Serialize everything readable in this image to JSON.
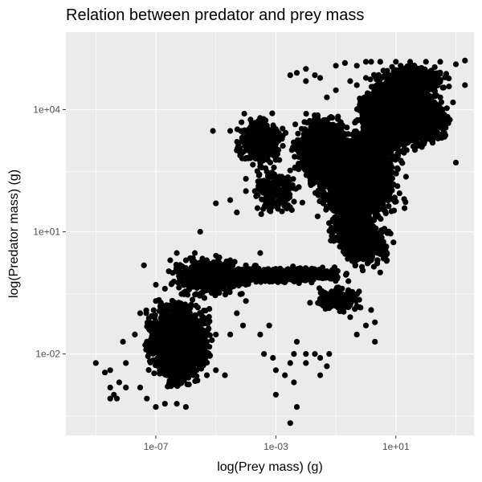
{
  "chart_data": {
    "type": "scatter",
    "title": "Relation between predator and prey mass",
    "xlabel": "log(Prey mass) (g)",
    "ylabel": "log(Predator mass) (g)",
    "x_scale": "log10",
    "y_scale": "log10",
    "xlim": [
      1e-10,
      4000.0
    ],
    "ylim": [
      0.0001,
      800000.0
    ],
    "x_ticks": [
      {
        "value": 1e-07,
        "label": "1e-07"
      },
      {
        "value": 0.001,
        "label": "1e-03"
      },
      {
        "value": 10,
        "label": "1e+01"
      }
    ],
    "y_ticks": [
      {
        "value": 0.01,
        "label": "1e-02"
      },
      {
        "value": 10,
        "label": "1e+01"
      },
      {
        "value": 10000,
        "label": "1e+04"
      }
    ],
    "x_minor_ticks": [
      1e-09,
      1e-05,
      0.1,
      1000
    ],
    "y_minor_ticks": [
      0.0003,
      0.3,
      300
    ],
    "grid": true,
    "point_color": "#000000",
    "panel_color": "#ebebeb",
    "grid_color": "#ffffff",
    "series": [
      {
        "values": [
          [
            1e-10,
            0.0006
          ],
          [
            1e-10,
            0.001
          ],
          [
            1e-10,
            0.002
          ],
          [
            1e-10,
            0.004
          ],
          [
            1e-09,
            0.006
          ],
          [
            3e-09,
            0.0008
          ],
          [
            5e-09,
            0.0008
          ],
          [
            3e-09,
            0.004
          ],
          [
            4e-09,
            0.001
          ],
          [
            6e-09,
            0.002
          ],
          [
            3e-09,
            0.0015
          ],
          [
            2e-09,
            0.0035
          ],
          [
            8e-09,
            0.02
          ],
          [
            2e-08,
            0.03
          ],
          [
            3e-08,
            0.0015
          ],
          [
            1e-08,
            0.006
          ],
          [
            1e-08,
            0.0015
          ],
          [
            5e-08,
            0.0008
          ],
          [
            2e-07,
            0.0006
          ],
          [
            1e-07,
            0.0005
          ],
          [
            5e-07,
            0.0006
          ],
          [
            1e-06,
            0.0005
          ],
          [
            3e-06,
            0.005
          ],
          [
            5e-06,
            0.003
          ],
          [
            1e-05,
            0.004
          ],
          [
            2e-05,
            0.003
          ],
          [
            3e-05,
            0.03
          ],
          [
            5e-05,
            0.1
          ],
          [
            8e-05,
            0.05
          ],
          [
            0.0001,
            0.2
          ],
          [
            0.003,
            0.0002
          ],
          [
            0.005,
            0.0005
          ],
          [
            0.001,
            0.001
          ],
          [
            0.001,
            0.004
          ],
          [
            0.002,
            0.003
          ],
          [
            0.0008,
            0.008
          ],
          [
            0.003,
            0.006
          ],
          [
            0.004,
            0.01
          ],
          [
            0.005,
            0.02
          ],
          [
            0.01,
            0.006
          ],
          [
            0.01,
            0.01
          ],
          [
            0.02,
            0.01
          ],
          [
            0.03,
            0.008
          ],
          [
            0.06,
            0.01
          ],
          [
            0.0004,
            0.01
          ],
          [
            0.0003,
            0.03
          ],
          [
            0.0006,
            0.05
          ],
          [
            0.004,
            0.002
          ],
          [
            0.03,
            0.003
          ],
          [
            0.05,
            0.005
          ],
          [
            0.5,
            0.03
          ],
          [
            1,
            0.05
          ],
          [
            1.5,
            0.12
          ],
          [
            2,
            0.06
          ],
          [
            2,
            0.02
          ],
          [
            0.2,
            0.15
          ],
          [
            0.5,
            0.15
          ],
          [
            0.3,
            0.08
          ],
          [
            3e-06,
            1
          ],
          [
            1e-05,
            1
          ],
          [
            3e-05,
            2
          ],
          [
            0.0001,
            0.5
          ],
          [
            1e-05,
            0.3
          ],
          [
            0.0003,
            3
          ],
          [
            0.0001,
            1.5
          ],
          [
            4e-08,
            1.5
          ],
          [
            1e-07,
            0.5
          ],
          [
            3e-07,
            2
          ],
          [
            1e-06,
            2
          ],
          [
            5e-07,
            3
          ],
          [
            2e-06,
            3
          ],
          [
            5e-06,
            2
          ],
          [
            3e-06,
            10
          ],
          [
            1e-05,
            50
          ],
          [
            3e-05,
            60
          ],
          [
            0.0001,
            100
          ],
          [
            5e-05,
            30
          ],
          [
            8e-06,
            3000
          ],
          [
            3e-05,
            3000
          ],
          [
            0.0001,
            2000
          ],
          [
            5e-05,
            1000
          ],
          [
            0.0002,
            800
          ],
          [
            0.0001,
            200
          ],
          [
            0.0002,
            100
          ],
          [
            0.0003,
            400
          ],
          [
            0.0005,
            1000
          ],
          [
            0.001,
            2000
          ],
          [
            0.001,
            700
          ],
          [
            0.0005,
            300
          ],
          [
            0.003,
            70000
          ],
          [
            0.005,
            80000
          ],
          [
            0.01,
            100000
          ],
          [
            0.02,
            70000
          ],
          [
            0.03,
            60000
          ],
          [
            0.01,
            50000
          ],
          [
            0.1,
            120000
          ],
          [
            0.2,
            140000
          ],
          [
            0.5,
            120000
          ],
          [
            1,
            150000
          ],
          [
            1.5,
            150000
          ],
          [
            3,
            150000
          ],
          [
            10,
            150000
          ],
          [
            30,
            150000
          ],
          [
            100,
            150000
          ],
          [
            300,
            150000
          ],
          [
            1000,
            130000
          ],
          [
            2000,
            160000
          ],
          [
            0.05,
            20000
          ],
          [
            0.1,
            30000
          ],
          [
            0.3,
            50000
          ],
          [
            0.5,
            40000
          ],
          [
            1,
            60000
          ],
          [
            3,
            60000
          ],
          [
            10,
            80000
          ],
          [
            30,
            40000
          ],
          [
            100,
            30000
          ],
          [
            300,
            20000
          ],
          [
            800,
            15000
          ],
          [
            2000,
            40000
          ],
          [
            1000,
            500
          ],
          [
            3,
            1
          ],
          [
            5,
            3
          ],
          [
            2,
            30
          ],
          [
            5,
            2
          ],
          [
            3e-06,
            0.05
          ],
          [
            5e-06,
            0.02
          ],
          [
            1e-05,
            0.03
          ],
          [
            2e-06,
            0.08
          ],
          [
            5e-08,
            0.02
          ],
          [
            3e-08,
            0.1
          ],
          [
            1e-07,
            0.2
          ],
          [
            2e-07,
            0.4
          ],
          [
            4e-07,
            0.6
          ],
          [
            8e-07,
            0.8
          ]
        ]
      }
    ],
    "clusters": [
      {
        "x_range": [
          3e-08,
          1e-05
        ],
        "y_range": [
          0.002,
          0.3
        ],
        "n": 1400
      },
      {
        "x_range": [
          1e-07,
          3e-06
        ],
        "y_range": [
          0.001,
          0.05
        ],
        "n": 500
      },
      {
        "x_range": [
          3e-06,
          0.5
        ],
        "y_range": [
          0.5,
          1.5
        ],
        "n": 700
      },
      {
        "x_range": [
          2e-07,
          0.0002
        ],
        "y_range": [
          0.2,
          3
        ],
        "n": 500
      },
      {
        "x_range": [
          0.01,
          1
        ],
        "y_range": [
          0.1,
          0.5
        ],
        "n": 200
      },
      {
        "x_range": [
          0.003,
          0.5
        ],
        "y_range": [
          100,
          10000
        ],
        "n": 1500
      },
      {
        "x_range": [
          0.01,
          30
        ],
        "y_range": [
          10,
          5000
        ],
        "n": 1500
      },
      {
        "x_range": [
          0.3,
          100
        ],
        "y_range": [
          500,
          60000
        ],
        "n": 1800
      },
      {
        "x_range": [
          1,
          500
        ],
        "y_range": [
          2000,
          100000
        ],
        "n": 1000
      },
      {
        "x_range": [
          5,
          1000
        ],
        "y_range": [
          1000,
          30000
        ],
        "n": 600
      },
      {
        "x_range": [
          0.05,
          3
        ],
        "y_range": [
          2,
          100
        ],
        "n": 600
      },
      {
        "x_range": [
          0.1,
          10
        ],
        "y_range": [
          1,
          30
        ],
        "n": 400
      },
      {
        "x_range": [
          3e-05,
          0.003
        ],
        "y_range": [
          300,
          10000
        ],
        "n": 300
      },
      {
        "x_range": [
          0.0001,
          0.01
        ],
        "y_range": [
          20,
          500
        ],
        "n": 200
      },
      {
        "x_range": [
          1,
          1000
        ],
        "y_range": [
          20000,
          150000
        ],
        "n": 500
      }
    ]
  }
}
